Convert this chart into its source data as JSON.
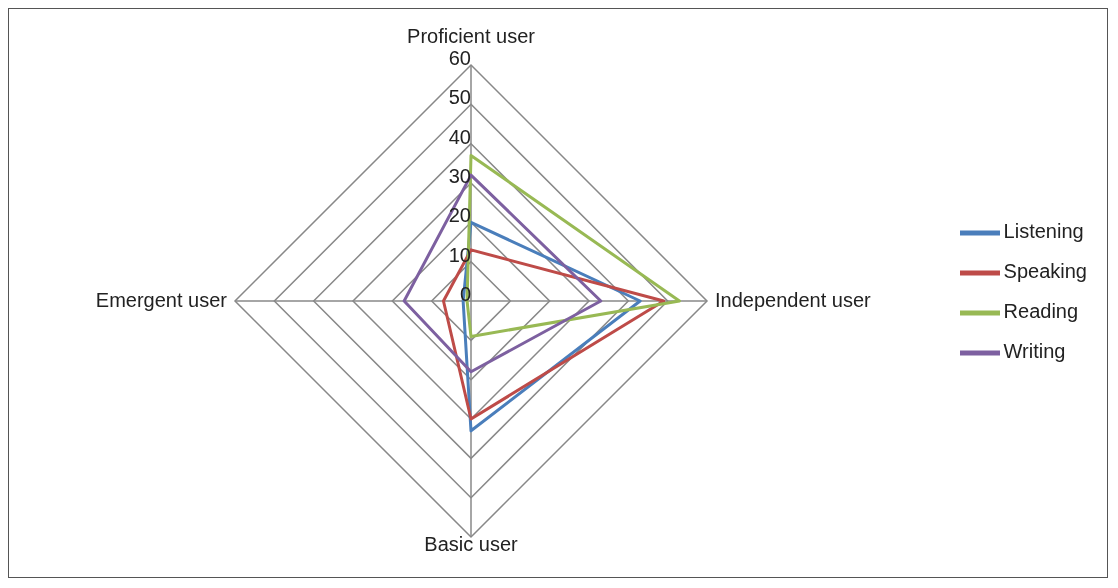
{
  "chart_data": {
    "type": "radar",
    "categories": [
      "Proficient user",
      "Independent user",
      "Basic user",
      "Emergent user"
    ],
    "series": [
      {
        "name": "Listening",
        "color": "#4a7ebb",
        "values": [
          20,
          43,
          33,
          2
        ]
      },
      {
        "name": "Speaking",
        "color": "#be4b48",
        "values": [
          13,
          49,
          30,
          7
        ]
      },
      {
        "name": "Reading",
        "color": "#98b954",
        "values": [
          37,
          53,
          9,
          1
        ]
      },
      {
        "name": "Writing",
        "color": "#7d60a0",
        "values": [
          32,
          33,
          18,
          17
        ]
      }
    ],
    "ylim": [
      0,
      60
    ],
    "yticks": [
      0,
      10,
      20,
      30,
      40,
      50,
      60
    ],
    "legend": "right",
    "grid": true,
    "marker": "none",
    "line_style": "solid"
  }
}
